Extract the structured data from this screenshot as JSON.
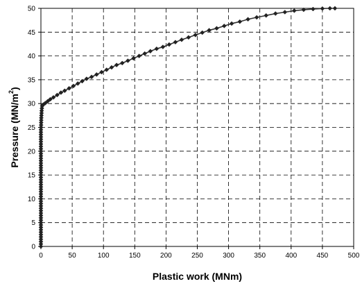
{
  "chart_data": {
    "type": "line",
    "xlabel": "Plastic work (MNm)",
    "ylabel_main": "Pressure (MN/m",
    "ylabel_sup": "2",
    "ylabel_end": ")",
    "xlim": [
      0,
      500
    ],
    "ylim": [
      0,
      50
    ],
    "x_ticks": [
      "0",
      "50",
      "100",
      "150",
      "200",
      "250",
      "300",
      "350",
      "400",
      "450",
      "500"
    ],
    "y_ticks": [
      "0",
      "5",
      "10",
      "15",
      "20",
      "25",
      "30",
      "35",
      "40",
      "45",
      "50"
    ],
    "grid": true,
    "marker": "diamond",
    "series": [
      {
        "points": [
          [
            0,
            0
          ],
          [
            0,
            0.5
          ],
          [
            0,
            1
          ],
          [
            0,
            1.5
          ],
          [
            0,
            2
          ],
          [
            0,
            2.5
          ],
          [
            0,
            3
          ],
          [
            0,
            3.5
          ],
          [
            0,
            4
          ],
          [
            0,
            4.5
          ],
          [
            0,
            5
          ],
          [
            0,
            5.5
          ],
          [
            0,
            6
          ],
          [
            0,
            6.5
          ],
          [
            0,
            7
          ],
          [
            0,
            7.5
          ],
          [
            0,
            8
          ],
          [
            0,
            8.5
          ],
          [
            0,
            9
          ],
          [
            0,
            9.5
          ],
          [
            0,
            10
          ],
          [
            0,
            10.5
          ],
          [
            0,
            11
          ],
          [
            0,
            11.5
          ],
          [
            0,
            12
          ],
          [
            0,
            12.5
          ],
          [
            0,
            13
          ],
          [
            0,
            13.5
          ],
          [
            0,
            14
          ],
          [
            0,
            14.5
          ],
          [
            0,
            15
          ],
          [
            0,
            15.5
          ],
          [
            0,
            16
          ],
          [
            0,
            16.5
          ],
          [
            0,
            17
          ],
          [
            0,
            17.5
          ],
          [
            0,
            18
          ],
          [
            0,
            18.5
          ],
          [
            0,
            19
          ],
          [
            0,
            19.5
          ],
          [
            0,
            20
          ],
          [
            0,
            20.5
          ],
          [
            0,
            21
          ],
          [
            0,
            21.5
          ],
          [
            0,
            22
          ],
          [
            0,
            22.5
          ],
          [
            0,
            23
          ],
          [
            0,
            23.5
          ],
          [
            0,
            24
          ],
          [
            0,
            24.5
          ],
          [
            0.2,
            25
          ],
          [
            0.3,
            25.5
          ],
          [
            0.4,
            26
          ],
          [
            0.5,
            26.5
          ],
          [
            0.6,
            27
          ],
          [
            0.8,
            27.5
          ],
          [
            1,
            28
          ],
          [
            1.2,
            28.5
          ],
          [
            1.5,
            29
          ],
          [
            2,
            29.5
          ],
          [
            4,
            29.8
          ],
          [
            7,
            30.1
          ],
          [
            11,
            30.5
          ],
          [
            15,
            30.9
          ],
          [
            20,
            31.3
          ],
          [
            26,
            31.8
          ],
          [
            32,
            32.3
          ],
          [
            38,
            32.7
          ],
          [
            45,
            33.2
          ],
          [
            52,
            33.7
          ],
          [
            59,
            34.2
          ],
          [
            66,
            34.7
          ],
          [
            73,
            35.2
          ],
          [
            81,
            35.6
          ],
          [
            89,
            36.1
          ],
          [
            97,
            36.6
          ],
          [
            105,
            37.1
          ],
          [
            113,
            37.6
          ],
          [
            121,
            38.1
          ],
          [
            130,
            38.5
          ],
          [
            139,
            39
          ],
          [
            148,
            39.5
          ],
          [
            157,
            40
          ],
          [
            166,
            40.5
          ],
          [
            175,
            41
          ],
          [
            185,
            41.5
          ],
          [
            195,
            41.9
          ],
          [
            205,
            42.4
          ],
          [
            215,
            42.9
          ],
          [
            225,
            43.4
          ],
          [
            236,
            43.9
          ],
          [
            247,
            44.4
          ],
          [
            258,
            44.9
          ],
          [
            269,
            45.4
          ],
          [
            281,
            45.8
          ],
          [
            293,
            46.3
          ],
          [
            305,
            46.8
          ],
          [
            318,
            47.2
          ],
          [
            331,
            47.7
          ],
          [
            345,
            48.1
          ],
          [
            360,
            48.5
          ],
          [
            375,
            48.9
          ],
          [
            390,
            49.2
          ],
          [
            405,
            49.5
          ],
          [
            420,
            49.7
          ],
          [
            435,
            49.85
          ],
          [
            450,
            49.95
          ],
          [
            462,
            50
          ],
          [
            470,
            50
          ]
        ]
      }
    ]
  }
}
